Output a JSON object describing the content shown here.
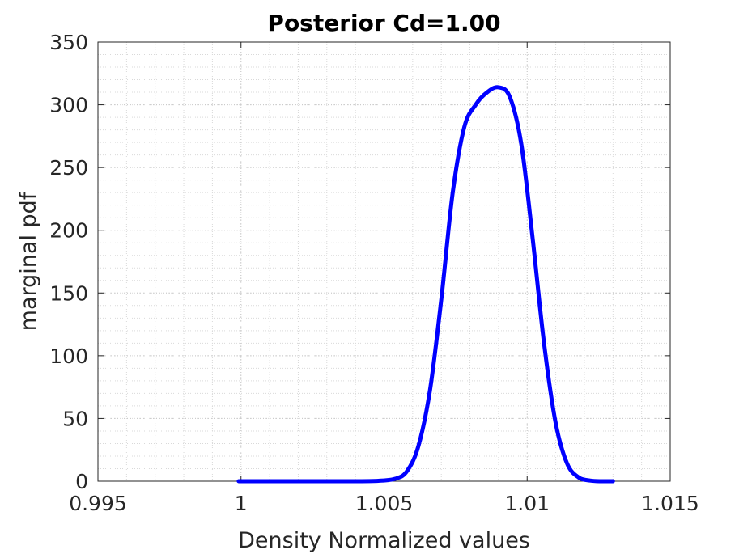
{
  "chart_data": {
    "type": "line",
    "title": "Posterior Cd=1.00",
    "xlabel": "Density Normalized values",
    "ylabel": "marginal pdf",
    "xlim": [
      0.995,
      1.015
    ],
    "ylim": [
      0,
      350
    ],
    "xticks": [
      0.995,
      1.0,
      1.005,
      1.01,
      1.015
    ],
    "xtick_labels": [
      "0.995",
      "1",
      "1.005",
      "1.01",
      "1.015"
    ],
    "yticks": [
      0,
      50,
      100,
      150,
      200,
      250,
      300,
      350
    ],
    "ytick_labels": [
      "0",
      "50",
      "100",
      "150",
      "200",
      "250",
      "300",
      "350"
    ],
    "grid": true,
    "minor_grid": true,
    "series": [
      {
        "color": "#0000ff",
        "x": [
          0.99992,
          1.001,
          1.002,
          1.003,
          1.004,
          1.0048,
          1.0054,
          1.0058,
          1.0062,
          1.0066,
          1.007,
          1.0074,
          1.0078,
          1.0082,
          1.0086,
          1.009,
          1.0094,
          1.0098,
          1.0102,
          1.0106,
          1.011,
          1.0114,
          1.0118,
          1.0122,
          1.0126,
          1.013
        ],
        "y": [
          0,
          0,
          0,
          0,
          0,
          0.3,
          2,
          8,
          28,
          72,
          145,
          230,
          282,
          300,
          310,
          314,
          306,
          268,
          192,
          108,
          46,
          14,
          3,
          0.5,
          0,
          0
        ]
      }
    ]
  }
}
